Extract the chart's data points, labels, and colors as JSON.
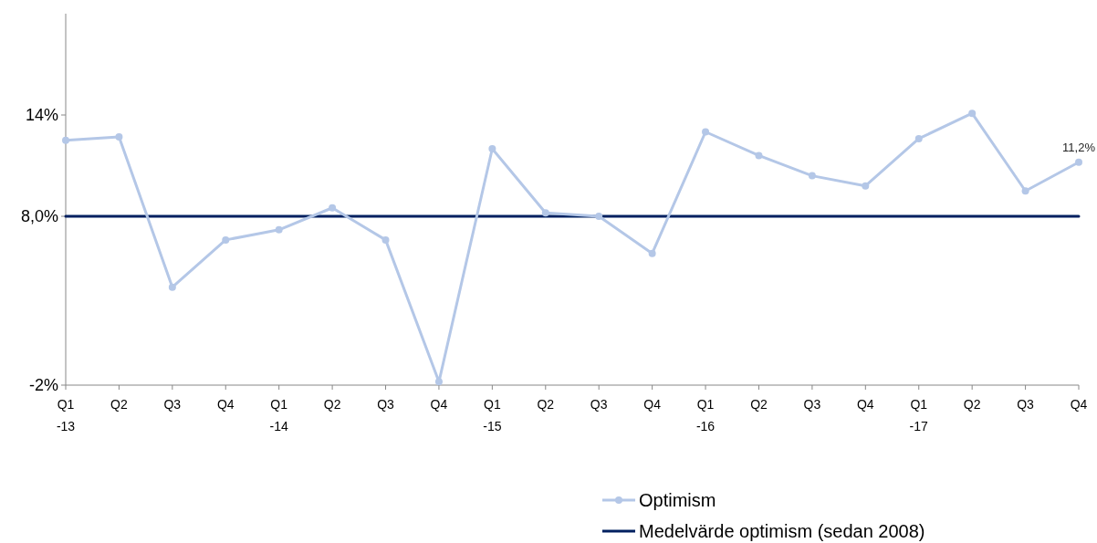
{
  "chart_data": {
    "type": "line",
    "categories": [
      "Q1\n-13",
      "Q2",
      "Q3",
      "Q4",
      "Q1\n-14",
      "Q2",
      "Q3",
      "Q4",
      "Q1\n-15",
      "Q2",
      "Q3",
      "Q4",
      "Q1\n-16",
      "Q2",
      "Q3",
      "Q4",
      "Q1\n-17",
      "Q2",
      "Q3",
      "Q4"
    ],
    "series": [
      {
        "name": "Optimism",
        "color": "#b4c7e7",
        "marker": "circle",
        "values": [
          12.5,
          12.7,
          3.8,
          6.6,
          7.2,
          8.5,
          6.6,
          -1.8,
          12.0,
          8.2,
          8.0,
          5.8,
          13.0,
          11.6,
          10.4,
          9.8,
          12.6,
          14.1,
          9.5,
          11.2
        ],
        "value_labels": [
          null,
          null,
          null,
          null,
          null,
          null,
          null,
          null,
          null,
          null,
          null,
          null,
          null,
          null,
          null,
          null,
          null,
          null,
          null,
          "11,2%"
        ]
      },
      {
        "name": "Medelvärde optimism (sedan 2008)",
        "color": "#002060",
        "marker": "none",
        "values": [
          8.0,
          8.0,
          8.0,
          8.0,
          8.0,
          8.0,
          8.0,
          8.0,
          8.0,
          8.0,
          8.0,
          8.0,
          8.0,
          8.0,
          8.0,
          8.0,
          8.0,
          8.0,
          8.0,
          8.0
        ]
      }
    ],
    "ylim": [
      -2,
      20
    ],
    "yticks": [
      {
        "value": 14,
        "label": "14%"
      },
      {
        "value": 8,
        "label": "8,0%"
      },
      {
        "value": -2,
        "label": "-2%"
      }
    ],
    "grid": false,
    "legend": "bottom"
  }
}
